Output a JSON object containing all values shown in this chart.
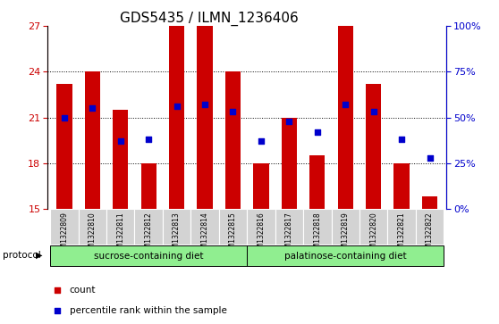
{
  "title": "GDS5435 / ILMN_1236406",
  "samples": [
    "GSM1322809",
    "GSM1322810",
    "GSM1322811",
    "GSM1322812",
    "GSM1322813",
    "GSM1322814",
    "GSM1322815",
    "GSM1322816",
    "GSM1322817",
    "GSM1322818",
    "GSM1322819",
    "GSM1322820",
    "GSM1322821",
    "GSM1322822"
  ],
  "count_values": [
    23.2,
    24.0,
    21.5,
    18.0,
    27.0,
    27.0,
    24.0,
    18.0,
    21.0,
    18.5,
    27.0,
    23.2,
    18.0,
    15.8
  ],
  "percentile_pct": [
    50,
    55,
    37,
    38,
    56,
    57,
    53,
    37,
    48,
    42,
    57,
    53,
    38,
    28
  ],
  "ylim_left": [
    15,
    27
  ],
  "yticks_left": [
    15,
    18,
    21,
    24,
    27
  ],
  "ylim_right": [
    0,
    100
  ],
  "yticks_right": [
    0,
    25,
    50,
    75,
    100
  ],
  "ytick_labels_right": [
    "0%",
    "25%",
    "50%",
    "75%",
    "100%"
  ],
  "bar_color": "#cc0000",
  "dot_color": "#0000cc",
  "bar_width": 0.55,
  "group1_label": "sucrose-containing diet",
  "group2_label": "palatinose-containing diet",
  "group1_color": "#90ee90",
  "group2_color": "#90ee90",
  "protocol_label": "protocol",
  "legend_count_label": "count",
  "legend_percentile_label": "percentile rank within the sample",
  "axis_color_left": "#cc0000",
  "axis_color_right": "#0000cc",
  "tick_fontsize": 8,
  "title_fontsize": 11
}
